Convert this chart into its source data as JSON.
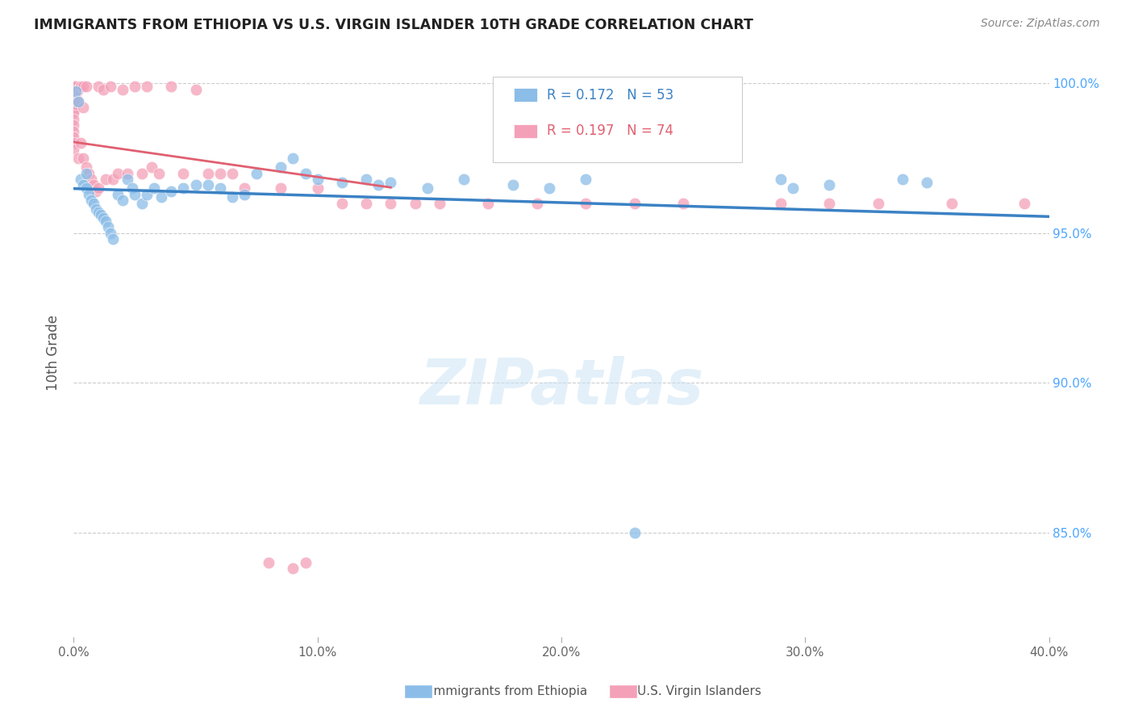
{
  "title": "IMMIGRANTS FROM ETHIOPIA VS U.S. VIRGIN ISLANDER 10TH GRADE CORRELATION CHART",
  "source": "Source: ZipAtlas.com",
  "ylabel": "10th Grade",
  "xlim": [
    0.0,
    0.4
  ],
  "ylim": [
    0.815,
    1.005
  ],
  "legend_blue_r": "R = 0.172",
  "legend_blue_n": "N = 53",
  "legend_pink_r": "R = 0.197",
  "legend_pink_n": "N = 74",
  "watermark": "ZIPatlas",
  "blue_color": "#8bbde8",
  "pink_color": "#f4a0b8",
  "blue_line_color": "#3b82c4",
  "pink_line_color": "#e06070",
  "blue_scatter_x": [
    0.001,
    0.002,
    0.003,
    0.004,
    0.005,
    0.005,
    0.006,
    0.007,
    0.008,
    0.009,
    0.01,
    0.011,
    0.012,
    0.013,
    0.014,
    0.015,
    0.016,
    0.018,
    0.02,
    0.022,
    0.024,
    0.025,
    0.028,
    0.03,
    0.033,
    0.036,
    0.04,
    0.045,
    0.05,
    0.055,
    0.06,
    0.065,
    0.07,
    0.075,
    0.085,
    0.09,
    0.095,
    0.1,
    0.11,
    0.12,
    0.125,
    0.13,
    0.145,
    0.16,
    0.18,
    0.195,
    0.21,
    0.23,
    0.29,
    0.295,
    0.31,
    0.34,
    0.35
  ],
  "blue_scatter_y": [
    0.9975,
    0.994,
    0.968,
    0.966,
    0.97,
    0.965,
    0.963,
    0.961,
    0.96,
    0.958,
    0.957,
    0.956,
    0.955,
    0.954,
    0.952,
    0.95,
    0.948,
    0.963,
    0.961,
    0.968,
    0.965,
    0.963,
    0.96,
    0.963,
    0.965,
    0.962,
    0.964,
    0.965,
    0.966,
    0.966,
    0.965,
    0.962,
    0.963,
    0.97,
    0.972,
    0.975,
    0.97,
    0.968,
    0.967,
    0.968,
    0.966,
    0.967,
    0.965,
    0.968,
    0.966,
    0.965,
    0.968,
    0.85,
    0.968,
    0.965,
    0.966,
    0.968,
    0.967
  ],
  "pink_scatter_x": [
    0.0,
    0.0,
    0.0,
    0.0,
    0.0,
    0.0,
    0.0,
    0.0,
    0.0,
    0.0,
    0.0,
    0.0,
    0.0,
    0.0,
    0.0,
    0.0,
    0.001,
    0.001,
    0.001,
    0.002,
    0.002,
    0.002,
    0.003,
    0.003,
    0.004,
    0.004,
    0.004,
    0.005,
    0.005,
    0.006,
    0.007,
    0.008,
    0.009,
    0.01,
    0.01,
    0.012,
    0.013,
    0.015,
    0.016,
    0.018,
    0.02,
    0.022,
    0.025,
    0.028,
    0.03,
    0.032,
    0.035,
    0.04,
    0.045,
    0.05,
    0.055,
    0.06,
    0.065,
    0.07,
    0.08,
    0.085,
    0.09,
    0.095,
    0.1,
    0.11,
    0.12,
    0.13,
    0.14,
    0.15,
    0.17,
    0.19,
    0.21,
    0.23,
    0.25,
    0.29,
    0.31,
    0.33,
    0.36,
    0.39
  ],
  "pink_scatter_y": [
    0.999,
    0.998,
    0.997,
    0.996,
    0.995,
    0.994,
    0.993,
    0.992,
    0.991,
    0.99,
    0.988,
    0.986,
    0.984,
    0.982,
    0.98,
    0.978,
    0.999,
    0.996,
    0.993,
    0.998,
    0.994,
    0.975,
    0.999,
    0.98,
    0.999,
    0.992,
    0.975,
    0.999,
    0.972,
    0.97,
    0.968,
    0.966,
    0.964,
    0.999,
    0.965,
    0.998,
    0.968,
    0.999,
    0.968,
    0.97,
    0.998,
    0.97,
    0.999,
    0.97,
    0.999,
    0.972,
    0.97,
    0.999,
    0.97,
    0.998,
    0.97,
    0.97,
    0.97,
    0.965,
    0.84,
    0.965,
    0.838,
    0.84,
    0.965,
    0.96,
    0.96,
    0.96,
    0.96,
    0.96,
    0.96,
    0.96,
    0.96,
    0.96,
    0.96,
    0.96,
    0.96,
    0.96,
    0.96,
    0.96
  ]
}
